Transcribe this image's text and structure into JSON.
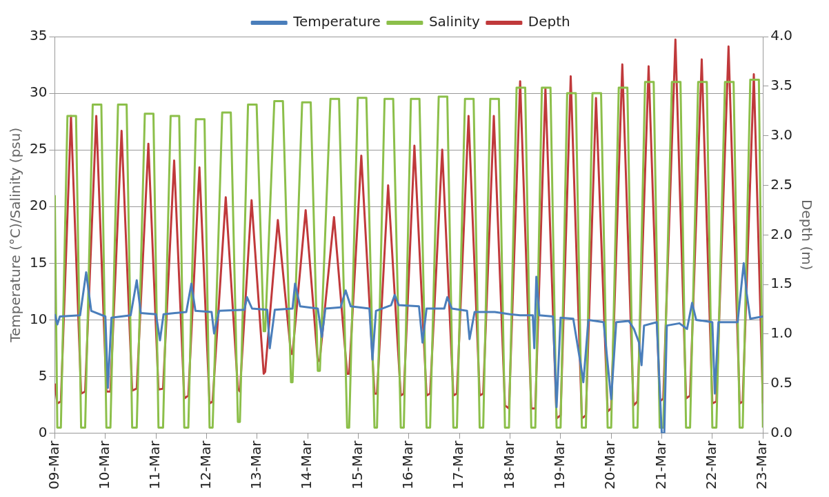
{
  "chart_data": {
    "type": "line",
    "ylabel": "Temperature (°C)/Salinity (psu)",
    "y2label": "Depth (m)",
    "xlim": [
      "--03-09",
      "--03-23"
    ],
    "xticks": [
      {
        "value": "--03-09",
        "label": "09-Mar"
      },
      {
        "value": "--03-10",
        "label": "10-Mar"
      },
      {
        "value": "--03-11",
        "label": "11-Mar"
      },
      {
        "value": "--03-12",
        "label": "12-Mar"
      },
      {
        "value": "--03-13",
        "label": "13-Mar"
      },
      {
        "value": "--03-14",
        "label": "14-Mar"
      },
      {
        "value": "--03-15",
        "label": "15-Mar"
      },
      {
        "value": "--03-16",
        "label": "16-Mar"
      },
      {
        "value": "--03-17",
        "label": "17-Mar"
      },
      {
        "value": "--03-18",
        "label": "18-Mar"
      },
      {
        "value": "--03-19",
        "label": "19-Mar"
      },
      {
        "value": "--03-20",
        "label": "20-Mar"
      },
      {
        "value": "--03-21",
        "label": "21-Mar"
      },
      {
        "value": "--03-22",
        "label": "22-Mar"
      },
      {
        "value": "--03-23",
        "label": "23-Mar"
      }
    ],
    "ylim": [
      0,
      35
    ],
    "yticks": [
      0,
      5,
      10,
      15,
      20,
      25,
      30,
      35
    ],
    "y2lim": [
      0,
      4
    ],
    "y2ticks": [
      {
        "value": 0,
        "label": "0.0"
      },
      {
        "value": 0.5,
        "label": "0.5"
      },
      {
        "value": 1,
        "label": "1.0"
      },
      {
        "value": 1.5,
        "label": "1.5"
      },
      {
        "value": 2,
        "label": "2.0"
      },
      {
        "value": 2.5,
        "label": "2.5"
      },
      {
        "value": 3,
        "label": "3.0"
      },
      {
        "value": 3.5,
        "label": "3.5"
      },
      {
        "value": 4,
        "label": "4.0"
      }
    ],
    "grid": "y",
    "legend": "top",
    "line_style": "solid",
    "series": [
      {
        "name": "Temperature",
        "type": "line",
        "color": "#4a7ebb",
        "x": [
          "--03-09T00:00",
          "--03-09T01:12",
          "--03-09T02:24",
          "--03-09T12:00",
          "--03-09T14:53",
          "--03-09T17:17",
          "--03-10T00:00",
          "--03-10T01:12",
          "--03-10T02:53",
          "--03-10T12:00",
          "--03-10T14:53",
          "--03-10T16:48",
          "--03-11T00:00",
          "--03-11T01:55",
          "--03-11T03:36",
          "--03-11T14:24",
          "--03-11T16:48",
          "--03-11T18:43",
          "--03-12T02:24",
          "--03-12T03:36",
          "--03-12T06:00",
          "--03-12T18:00",
          "--03-12T19:12",
          "--03-12T21:36",
          "--03-13T04:48",
          "--03-13T06:00",
          "--03-13T08:24",
          "--03-13T16:48",
          "--03-13T18:00",
          "--03-13T20:24",
          "--03-14T04:48",
          "--03-14T06:43",
          "--03-14T08:24",
          "--03-14T15:36",
          "--03-14T18:00",
          "--03-14T20:24",
          "--03-15T05:17",
          "--03-15T06:43",
          "--03-15T08:24",
          "--03-15T15:36",
          "--03-15T17:17",
          "--03-15T19:12",
          "--03-16T04:48",
          "--03-16T06:29",
          "--03-16T08:24",
          "--03-16T16:48",
          "--03-16T18:14",
          "--03-16T20:24",
          "--03-17T03:36",
          "--03-17T04:48",
          "--03-17T07:12",
          "--03-17T16:48",
          "--03-18T00:00",
          "--03-18T04:48",
          "--03-18T10:48",
          "--03-18T11:31",
          "--03-18T12:29",
          "--03-18T13:55",
          "--03-18T20:24",
          "--03-18T22:05",
          "--03-19T00:00",
          "--03-19T06:00",
          "--03-19T09:36",
          "--03-19T10:48",
          "--03-19T13:12",
          "--03-19T20:24",
          "--03-20T00:00",
          "--03-20T02:24",
          "--03-20T08:24",
          "--03-20T10:48",
          "--03-20T13:12",
          "--03-20T14:24",
          "--03-20T15:36",
          "--03-20T21:36",
          "--03-21T00:00",
          "--03-21T01:12",
          "--03-21T02:24",
          "--03-21T08:24",
          "--03-21T12:00",
          "--03-21T14:24",
          "--03-21T16:19",
          "--03-22T00:00",
          "--03-22T01:12",
          "--03-22T02:53",
          "--03-22T12:00",
          "--03-22T14:53",
          "--03-22T16:19",
          "--03-22T18:00",
          "--03-23T00:00"
        ],
        "values": [
          10.5,
          9.6,
          10.3,
          10.4,
          14.2,
          10.8,
          10.3,
          4,
          10.2,
          10.4,
          13.5,
          10.6,
          10.5,
          8.2,
          10.5,
          10.7,
          13.2,
          10.8,
          10.7,
          8.8,
          10.8,
          10.9,
          12,
          11,
          10.9,
          7.5,
          10.9,
          11,
          13.2,
          11.2,
          11,
          8.5,
          11,
          11.1,
          12.6,
          11.2,
          11,
          6.5,
          10.8,
          11.3,
          12.2,
          11.3,
          11.2,
          8,
          11,
          11,
          12,
          11,
          10.8,
          8.3,
          10.7,
          10.7,
          10.5,
          10.4,
          10.4,
          7.5,
          13.8,
          10.4,
          10.3,
          2.3,
          10.2,
          10.1,
          6,
          4.5,
          10,
          9.8,
          3,
          9.8,
          9.9,
          9.2,
          8,
          6,
          9.5,
          9.8,
          0,
          0,
          9.5,
          9.7,
          9.2,
          11.5,
          10,
          9.8,
          3.5,
          9.8,
          9.8,
          15,
          12.3,
          10.1,
          10.3
        ]
      },
      {
        "name": "Salinity",
        "type": "line",
        "color": "#8cbf4a",
        "x": [
          "--03-09T00:00",
          "--03-09T01:12",
          "--03-09T02:53",
          "--03-09T06:00",
          "--03-09T10:05",
          "--03-09T12:29",
          "--03-09T14:24",
          "--03-09T18:00",
          "--03-09T22:05",
          "--03-10T00:29",
          "--03-10T02:24",
          "--03-10T06:00",
          "--03-10T10:05",
          "--03-10T12:43",
          "--03-10T14:53",
          "--03-10T18:43",
          "--03-10T22:48",
          "--03-11T01:12",
          "--03-11T03:22",
          "--03-11T06:58",
          "--03-11T11:02",
          "--03-11T13:26",
          "--03-11T15:22",
          "--03-11T18:58",
          "--03-11T23:02",
          "--03-12T01:26",
          "--03-12T02:53",
          "--03-12T07:26",
          "--03-12T11:31",
          "--03-12T14:53",
          "--03-12T15:50",
          "--03-12T19:41",
          "--03-12T23:46",
          "--03-13T03:07",
          "--03-13T03:50",
          "--03-13T08:10",
          "--03-13T12:14",
          "--03-13T16:05",
          "--03-13T16:48",
          "--03-13T21:22",
          "--03-14T01:26",
          "--03-14T04:48",
          "--03-14T05:46",
          "--03-14T10:48",
          "--03-14T14:53",
          "--03-14T18:43",
          "--03-14T19:41",
          "--03-14T23:46",
          "--03-15T03:50",
          "--03-15T07:41",
          "--03-15T08:53",
          "--03-15T12:29",
          "--03-15T16:34",
          "--03-15T20:10",
          "--03-15T21:36",
          "--03-16T00:58",
          "--03-16T05:02",
          "--03-16T08:24",
          "--03-16T10:05",
          "--03-16T14:10",
          "--03-16T18:14",
          "--03-16T21:07",
          "--03-16T22:48",
          "--03-17T02:38",
          "--03-17T06:43",
          "--03-17T09:36",
          "--03-17T11:17",
          "--03-17T14:38",
          "--03-17T18:43",
          "--03-17T21:36",
          "--03-17T23:31",
          "--03-18T03:07",
          "--03-18T07:12",
          "--03-18T10:05",
          "--03-18T12:00",
          "--03-18T15:07",
          "--03-18T19:12",
          "--03-18T22:05",
          "--03-19T00:00",
          "--03-19T03:07",
          "--03-19T07:12",
          "--03-19T10:05",
          "--03-19T12:00",
          "--03-19T15:07",
          "--03-19T19:12",
          "--03-19T22:19",
          "--03-20T00:00",
          "--03-20T03:36",
          "--03-20T07:41",
          "--03-20T10:34",
          "--03-20T12:29",
          "--03-20T16:05",
          "--03-20T20:10",
          "--03-20T23:02",
          "--03-21T00:43",
          "--03-21T04:48",
          "--03-21T08:53",
          "--03-21T11:31",
          "--03-21T13:26",
          "--03-21T17:17",
          "--03-21T21:22",
          "--03-22T00:00",
          "--03-22T01:55",
          "--03-22T06:00",
          "--03-22T10:05",
          "--03-22T12:58",
          "--03-22T14:24",
          "--03-22T18:00",
          "--03-22T22:05",
          "--03-23T00:00"
        ],
        "values": [
          21,
          0.5,
          0.5,
          28,
          28,
          0.5,
          0.5,
          29,
          29,
          0.5,
          0.5,
          29,
          29,
          0.5,
          0.5,
          28.2,
          28.2,
          0.5,
          0.5,
          28,
          28,
          0.5,
          0.5,
          27.7,
          27.7,
          0.5,
          0.5,
          28.3,
          28.3,
          1,
          1,
          29,
          29,
          9,
          9,
          29.3,
          29.3,
          4.5,
          4.5,
          29.2,
          29.2,
          5.5,
          5.5,
          29.5,
          29.5,
          0.5,
          0.5,
          29.6,
          29.6,
          0.5,
          0.5,
          29.5,
          29.5,
          0.5,
          0.5,
          29.5,
          29.5,
          0.5,
          0.5,
          29.7,
          29.7,
          0.5,
          0.5,
          29.5,
          29.5,
          0.5,
          0.5,
          29.5,
          29.5,
          0.5,
          0.5,
          30.5,
          30.5,
          0.5,
          0.5,
          30.5,
          30.5,
          0.5,
          0.5,
          30,
          30,
          0.5,
          0.5,
          30,
          30,
          0.5,
          0.5,
          30.5,
          30.5,
          0.5,
          0.5,
          31,
          31,
          0.5,
          0.5,
          31,
          31,
          0.5,
          0.5,
          31,
          31,
          0.5,
          0.5,
          31,
          31,
          0.5,
          0.5,
          31.2,
          31.2,
          0.5
        ]
      },
      {
        "name": "Depth",
        "type": "line",
        "axis": "y2",
        "color": "#c0393b",
        "x": [
          "--03-09T00:00",
          "--03-09T01:12",
          "--03-09T02:53",
          "--03-09T07:41",
          "--03-09T12:29",
          "--03-09T14:24",
          "--03-09T19:41",
          "--03-10T00:29",
          "--03-10T02:24",
          "--03-10T07:41",
          "--03-10T12:43",
          "--03-10T14:53",
          "--03-10T20:24",
          "--03-11T01:12",
          "--03-11T03:22",
          "--03-11T08:38",
          "--03-11T13:26",
          "--03-11T15:22",
          "--03-11T20:38",
          "--03-12T01:26",
          "--03-12T02:53",
          "--03-12T09:07",
          "--03-12T14:53",
          "--03-12T15:50",
          "--03-12T21:22",
          "--03-13T03:07",
          "--03-13T03:50",
          "--03-13T09:50",
          "--03-13T16:05",
          "--03-13T16:48",
          "--03-13T23:02",
          "--03-14T04:48",
          "--03-14T05:46",
          "--03-14T12:29",
          "--03-14T18:43",
          "--03-14T19:41",
          "--03-15T01:26",
          "--03-15T07:41",
          "--03-15T08:53",
          "--03-15T14:10",
          "--03-15T20:10",
          "--03-15T21:36",
          "--03-16T02:38",
          "--03-16T08:24",
          "--03-16T10:05",
          "--03-16T15:50",
          "--03-16T21:07",
          "--03-16T22:48",
          "--03-17T04:19",
          "--03-17T09:36",
          "--03-17T11:17",
          "--03-17T16:19",
          "--03-17T21:36",
          "--03-17T23:31",
          "--03-18T04:48",
          "--03-18T10:05",
          "--03-18T12:00",
          "--03-18T16:48",
          "--03-18T22:05",
          "--03-19T00:00",
          "--03-19T04:48",
          "--03-19T10:05",
          "--03-19T12:00",
          "--03-19T16:48",
          "--03-19T22:19",
          "--03-20T00:00",
          "--03-20T05:17",
          "--03-20T10:34",
          "--03-20T12:29",
          "--03-20T17:46",
          "--03-20T23:02",
          "--03-21T00:43",
          "--03-21T06:29",
          "--03-21T11:31",
          "--03-21T13:26",
          "--03-21T18:58",
          "--03-22T00:00",
          "--03-22T01:55",
          "--03-22T07:41",
          "--03-22T12:58",
          "--03-22T14:24",
          "--03-22T19:41",
          "--03-23T00:00"
        ],
        "values": [
          0.5,
          0.3,
          0.32,
          3.2,
          0.4,
          0.42,
          3.2,
          0.42,
          0.42,
          3.05,
          0.43,
          0.45,
          2.92,
          0.44,
          0.45,
          2.75,
          0.35,
          0.38,
          2.68,
          0.3,
          0.32,
          2.38,
          0.45,
          0.42,
          2.35,
          0.6,
          0.62,
          2.15,
          0.8,
          0.8,
          2.25,
          0.72,
          0.75,
          2.18,
          0.6,
          0.6,
          2.8,
          0.4,
          0.4,
          2.5,
          0.38,
          0.4,
          2.9,
          0.38,
          0.4,
          2.86,
          0.38,
          0.4,
          3.2,
          0.38,
          0.4,
          3.2,
          0.28,
          0.25,
          3.55,
          0.25,
          0.25,
          3.48,
          0.15,
          0.18,
          3.6,
          0.15,
          0.18,
          3.38,
          0.22,
          0.25,
          3.72,
          0.28,
          0.32,
          3.7,
          0.32,
          0.35,
          3.97,
          0.35,
          0.38,
          3.77,
          0.3,
          0.32,
          3.9,
          0.3,
          0.32,
          3.62,
          0.3
        ]
      }
    ]
  }
}
